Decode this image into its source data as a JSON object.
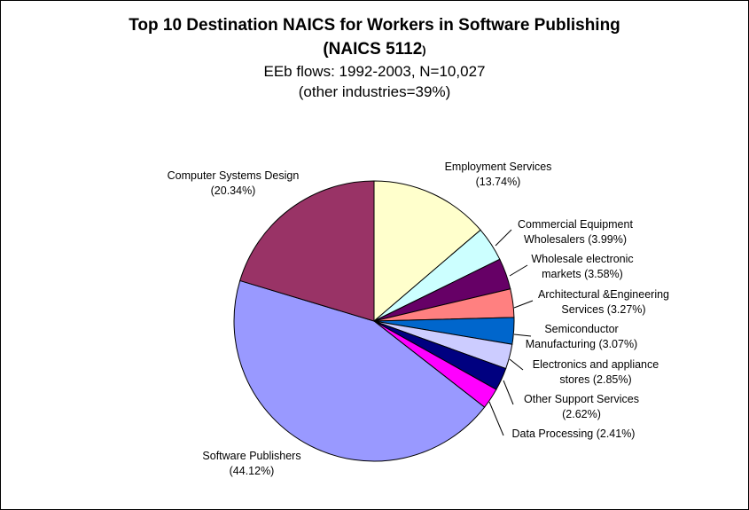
{
  "chart_data": {
    "type": "pie",
    "title": "Top 10 Destination NAICS for Workers in Software Publishing",
    "title_line2_main": "(NAICS 5112",
    "title_line2_tail": ")",
    "subtitle": "EEb flows: 1992-2003, N=10,027",
    "subtitle2": "(other industries=39%)",
    "slices": [
      {
        "name": "Employment Services",
        "value": 13.74,
        "label_lines": [
          "Employment Services",
          "(13.74%)"
        ],
        "color": "#ffffcc"
      },
      {
        "name": "Commercial Equipment Wholesalers",
        "value": 3.99,
        "label_lines": [
          "Commercial Equipment",
          "Wholesalers (3.99%)"
        ],
        "color": "#ccffff"
      },
      {
        "name": "Wholesale electronic markets",
        "value": 3.58,
        "label_lines": [
          "Wholesale electronic",
          "markets (3.58%)"
        ],
        "color": "#660066"
      },
      {
        "name": "Architectural &Engineering Services",
        "value": 3.27,
        "label_lines": [
          "Architectural &Engineering",
          "Services (3.27%)"
        ],
        "color": "#ff8080"
      },
      {
        "name": "Semiconductor Manufacturing",
        "value": 3.07,
        "label_lines": [
          "Semiconductor",
          "Manufacturing (3.07%)"
        ],
        "color": "#0066cc"
      },
      {
        "name": "Electronics and appliance stores",
        "value": 2.85,
        "label_lines": [
          "Electronics and appliance",
          "stores (2.85%)"
        ],
        "color": "#ccccff"
      },
      {
        "name": "Other Support Services",
        "value": 2.62,
        "label_lines": [
          "Other Support Services",
          "(2.62%)"
        ],
        "color": "#000080"
      },
      {
        "name": "Data Processing",
        "value": 2.41,
        "label_lines": [
          "Data Processing (2.41%)"
        ],
        "color": "#ff00ff"
      },
      {
        "name": "Software Publishers",
        "value": 44.12,
        "label_lines": [
          "Software Publishers",
          "(44.12%)"
        ],
        "color": "#9999ff"
      },
      {
        "name": "Computer Systems Design",
        "value": 20.34,
        "label_lines": [
          "Computer Systems Design",
          "(20.34%)"
        ],
        "color": "#993366"
      }
    ]
  }
}
